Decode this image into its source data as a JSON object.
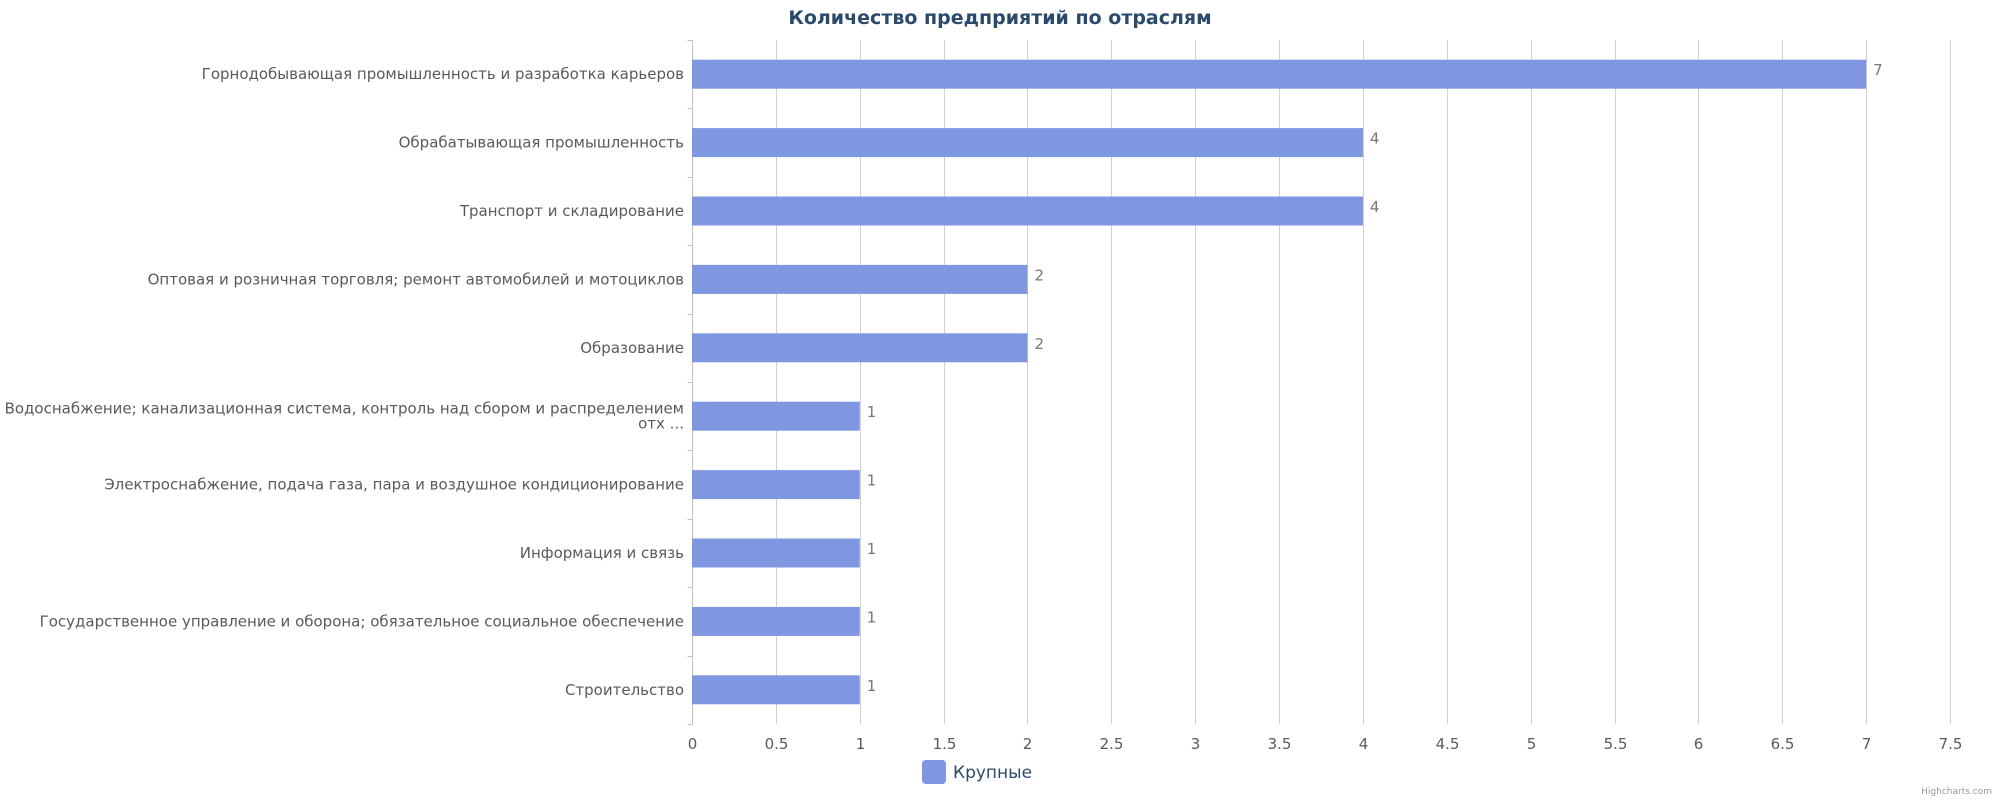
{
  "chart_data": {
    "type": "bar",
    "orientation": "horizontal",
    "title": "Количество предприятий по отраслям",
    "categories": [
      [
        "Горнодобывающая промышленность и разработка карьеров"
      ],
      [
        "Обрабатывающая промышленность"
      ],
      [
        "Транспорт и складирование"
      ],
      [
        "Оптовая и розничная торговля; ремонт автомобилей и мотоциклов"
      ],
      [
        "Образование"
      ],
      [
        "Водоснабжение; канализационная система, контроль над сбором и распределением",
        "отх ..."
      ],
      [
        "Электроснабжение, подача газа, пара и воздушное кондиционирование"
      ],
      [
        "Информация и связь"
      ],
      [
        "Государственное управление и оборона; обязательное социальное обеспечение"
      ],
      [
        "Строительство"
      ]
    ],
    "series": [
      {
        "name": "Крупные",
        "values": [
          7,
          4,
          4,
          2,
          2,
          1,
          1,
          1,
          1,
          1
        ],
        "color": "#7f96e0"
      }
    ],
    "xlim": [
      0,
      7.5
    ],
    "xticks": [
      "0",
      "0.5",
      "1",
      "1.5",
      "2",
      "2.5",
      "3",
      "3.5",
      "4",
      "4.5",
      "5",
      "5.5",
      "6",
      "6.5",
      "7",
      "7.5"
    ],
    "grid": true,
    "data_labels": true,
    "legend": "bottom-center"
  },
  "credits": "Highcharts.com",
  "colors": {
    "bar": "#7f96e0",
    "grid": "#d0d0d0",
    "title": "#2b4a6b",
    "legend_text": "#2b4a6b"
  }
}
